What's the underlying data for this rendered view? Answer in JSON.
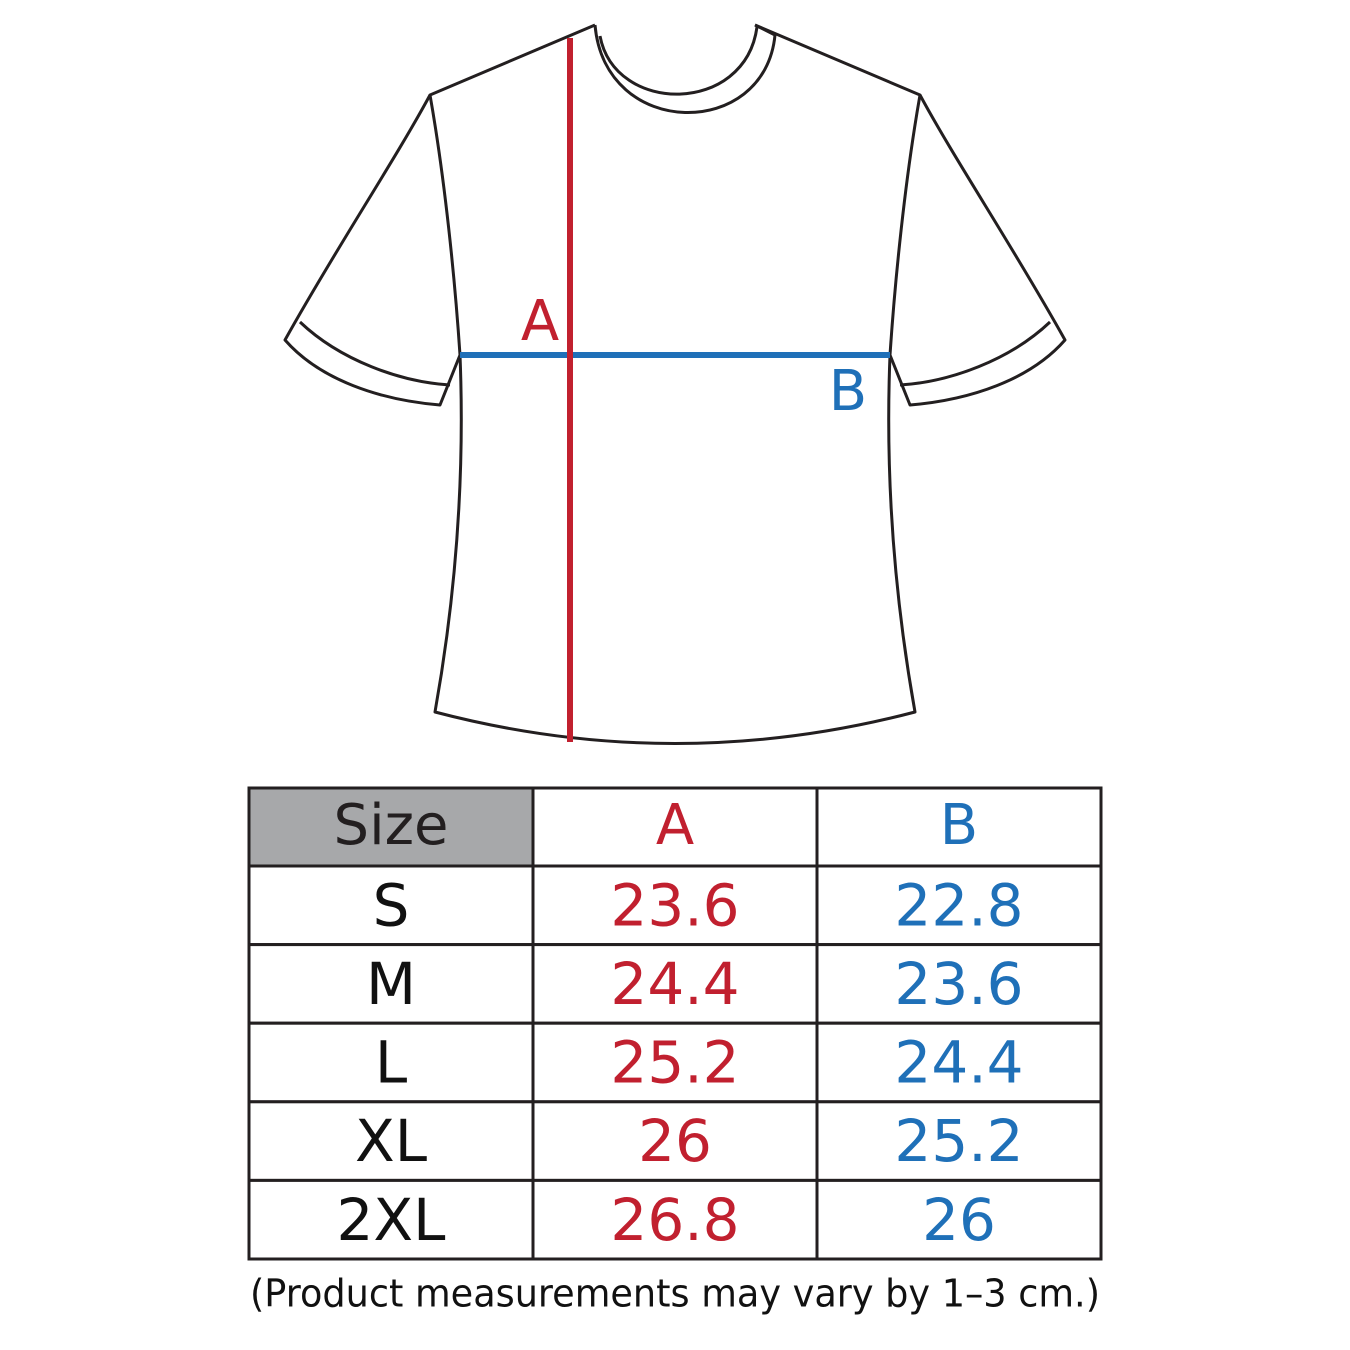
{
  "diagram": {
    "labels": {
      "a": "A",
      "b": "B"
    }
  },
  "table": {
    "header": [
      "Size",
      "A",
      "B"
    ],
    "rows": [
      [
        "S",
        23.6,
        22.8
      ],
      [
        "M",
        24.4,
        23.6
      ],
      [
        "L",
        25.2,
        24.4
      ],
      [
        "XL",
        26,
        25.2
      ],
      [
        "2XL",
        26.8,
        26
      ]
    ]
  },
  "note": "(Product measurements may vary by 1–3 cm.)"
}
